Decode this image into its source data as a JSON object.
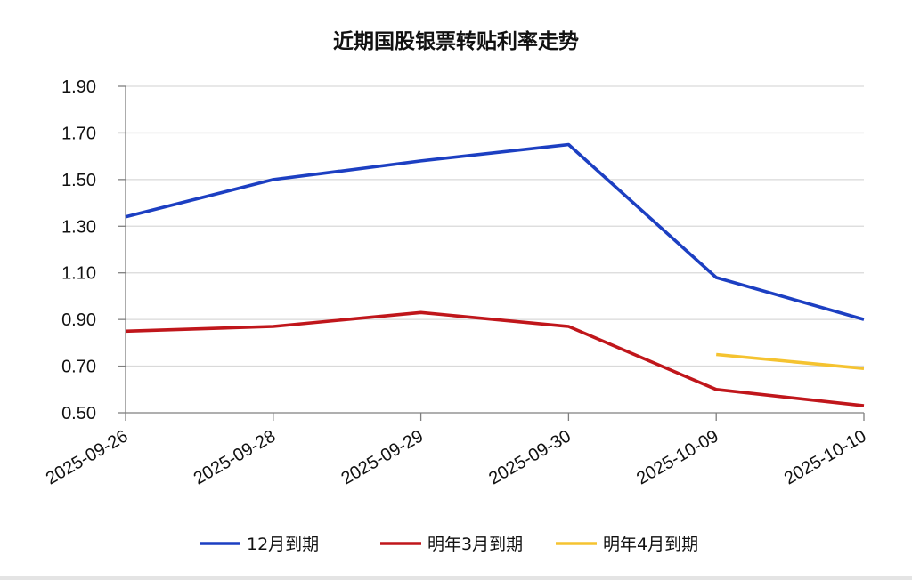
{
  "chart_data": {
    "type": "line",
    "title": "近期国股银票转贴利率走势",
    "xlabel": "",
    "ylabel": "",
    "categories": [
      "2025-09-26",
      "2025-09-28",
      "2025-09-29",
      "2025-09-30",
      "2025-10-09",
      "2025-10-10"
    ],
    "y_ticks": [
      "1.90",
      "1.70",
      "1.50",
      "1.30",
      "1.10",
      "0.90",
      "0.70",
      "0.50"
    ],
    "ylim": [
      0.5,
      1.9
    ],
    "grid": true,
    "legend_position": "bottom",
    "series": [
      {
        "name": "12月到期",
        "color": "#1c3fc2",
        "values": [
          1.34,
          1.5,
          1.58,
          1.65,
          1.08,
          0.9
        ]
      },
      {
        "name": "明年3月到期",
        "color": "#c0161b",
        "values": [
          0.85,
          0.87,
          0.93,
          0.87,
          0.6,
          0.53
        ]
      },
      {
        "name": "明年4月到期",
        "color": "#f5c330",
        "values": [
          null,
          null,
          null,
          null,
          0.75,
          0.69
        ]
      }
    ]
  }
}
